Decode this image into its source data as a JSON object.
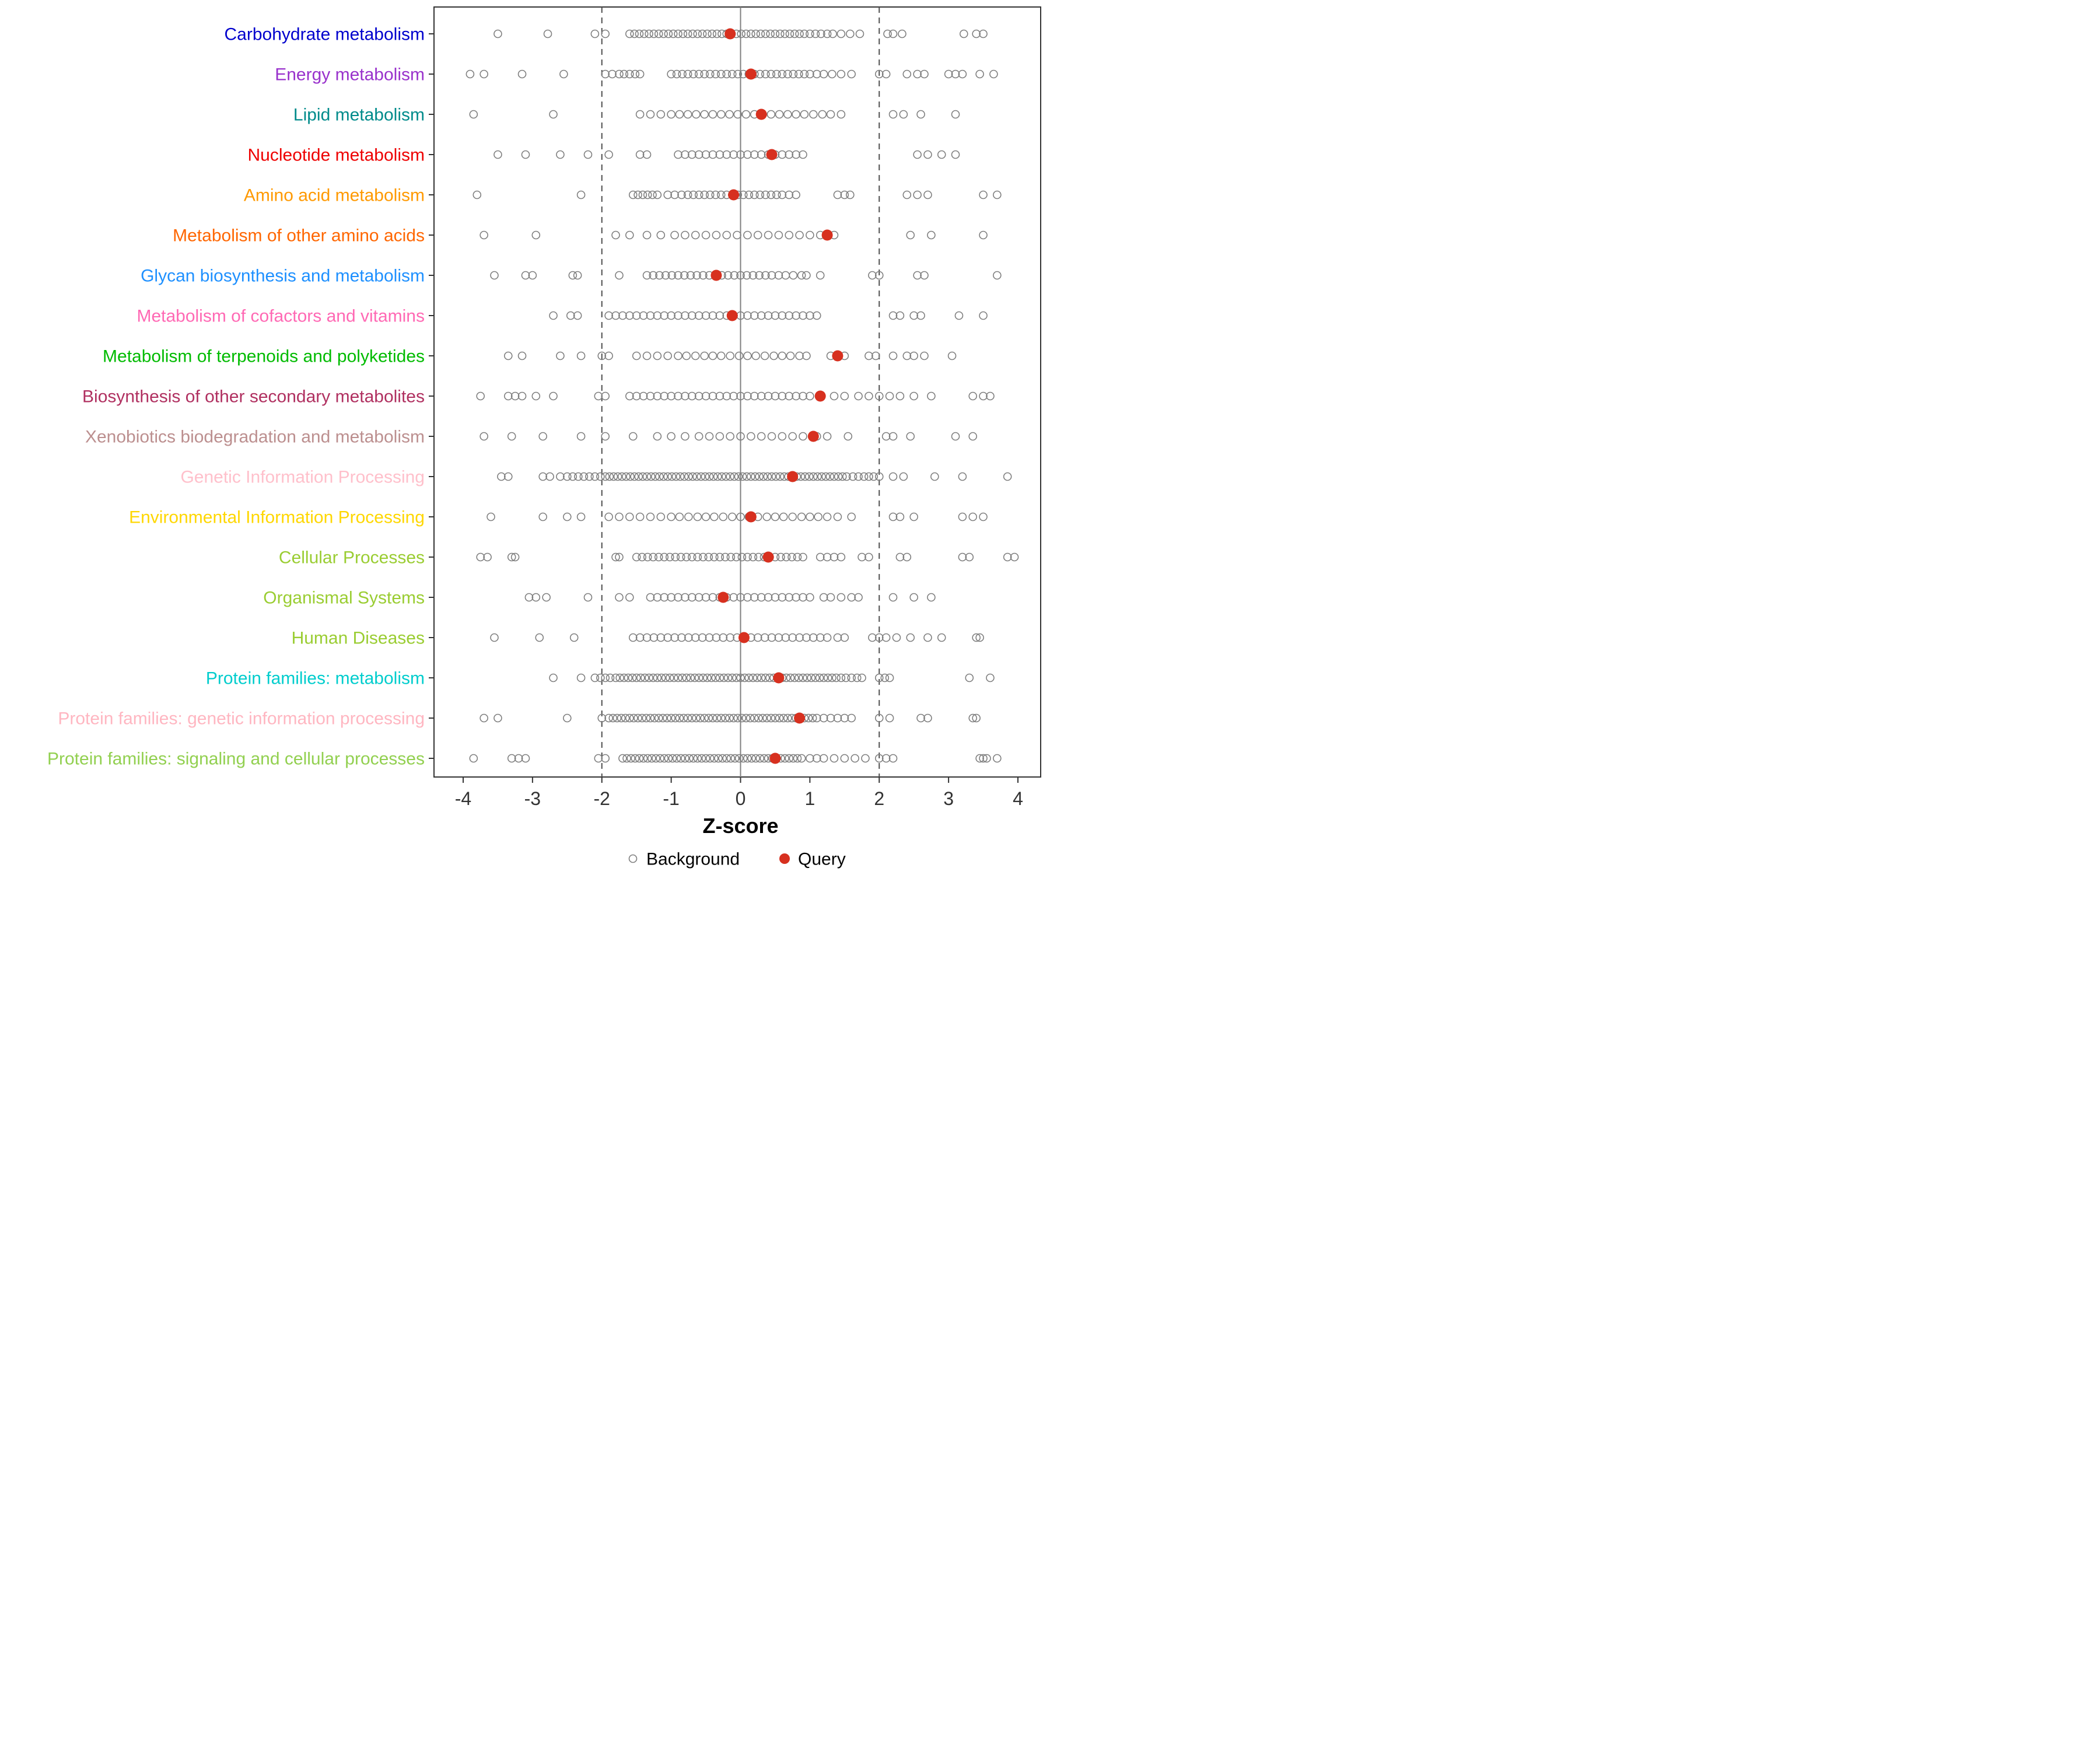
{
  "page": {
    "background": "#FFFFFF"
  },
  "chart_data": {
    "type": "scatter",
    "subtype": "horizontal-strip-dotplot",
    "title": "",
    "xlabel": "Z-score",
    "ylabel": "",
    "xlim": [
      -4.45,
      4.35
    ],
    "x_ticks": [
      "-4",
      "-3",
      "-2",
      "-1",
      "0",
      "1",
      "2",
      "3",
      "4"
    ],
    "x_tick_values": [
      -4,
      -3,
      -2,
      -1,
      0,
      1,
      2,
      3,
      4
    ],
    "grid": false,
    "reference_lines": {
      "solid_x": [
        0
      ],
      "dashed_x": [
        -2,
        2
      ]
    },
    "colors": {
      "query": "#D7301F",
      "background_stroke": "#7F7F7F",
      "dashed_line": "#4D4D4D",
      "zero_line": "#808080",
      "panel_border": "#333333",
      "tick_label": "#333333",
      "axis_title": "#000000",
      "legend_text": "#000000"
    },
    "legend": [
      {
        "label": "Background",
        "marker": "open-circle"
      },
      {
        "label": "Query",
        "marker": "filled-circle"
      }
    ],
    "legend_position": "bottom",
    "categories": [
      {
        "label": "Carbohydrate metabolism",
        "color": "#0000CD",
        "query": -0.15,
        "background": [
          -3.5,
          -2.78,
          -2.1,
          -1.95,
          -1.6,
          -1.53,
          -1.46,
          -1.39,
          -1.32,
          -1.25,
          -1.18,
          -1.11,
          -1.04,
          -0.97,
          -0.9,
          -0.83,
          -0.76,
          -0.69,
          -0.62,
          -0.55,
          -0.48,
          -0.41,
          -0.34,
          -0.27,
          -0.2,
          -0.13,
          -0.06,
          0.01,
          0.08,
          0.15,
          0.22,
          0.29,
          0.36,
          0.43,
          0.5,
          0.57,
          0.64,
          0.71,
          0.78,
          0.85,
          0.92,
          1.0,
          1.08,
          1.16,
          1.25,
          1.33,
          1.45,
          1.58,
          1.72,
          2.12,
          2.2,
          2.33,
          3.22,
          3.4,
          3.5
        ]
      },
      {
        "label": "Energy metabolism",
        "color": "#9932CC",
        "query": 0.15,
        "background": [
          -3.9,
          -3.7,
          -3.15,
          -2.55,
          -1.95,
          -1.85,
          -1.75,
          -1.68,
          -1.6,
          -1.52,
          -1.45,
          -1.0,
          -0.92,
          -0.84,
          -0.76,
          -0.68,
          -0.6,
          -0.52,
          -0.44,
          -0.36,
          -0.28,
          -0.2,
          -0.12,
          -0.04,
          0.04,
          0.12,
          0.2,
          0.28,
          0.36,
          0.44,
          0.52,
          0.6,
          0.68,
          0.76,
          0.84,
          0.92,
          1.0,
          1.1,
          1.2,
          1.32,
          1.45,
          1.6,
          2.0,
          2.1,
          2.4,
          2.55,
          2.65,
          3.0,
          3.1,
          3.2,
          3.45,
          3.65
        ]
      },
      {
        "label": "Lipid metabolism",
        "color": "#008B8B",
        "query": 0.3,
        "background": [
          -3.85,
          -2.7,
          -1.45,
          -1.3,
          -1.15,
          -1.0,
          -0.88,
          -0.76,
          -0.64,
          -0.52,
          -0.4,
          -0.28,
          -0.16,
          -0.04,
          0.08,
          0.2,
          0.32,
          0.44,
          0.56,
          0.68,
          0.8,
          0.92,
          1.05,
          1.18,
          1.3,
          1.45,
          2.2,
          2.35,
          2.6,
          3.1
        ]
      },
      {
        "label": "Nucleotide metabolism",
        "color": "#EE0000",
        "query": 0.45,
        "background": [
          -3.5,
          -3.1,
          -2.6,
          -2.2,
          -1.9,
          -1.45,
          -1.35,
          -0.9,
          -0.8,
          -0.7,
          -0.6,
          -0.5,
          -0.4,
          -0.3,
          -0.2,
          -0.1,
          0.0,
          0.1,
          0.2,
          0.3,
          0.4,
          0.5,
          0.6,
          0.7,
          0.8,
          0.9,
          2.55,
          2.7,
          2.9,
          3.1
        ]
      },
      {
        "label": "Amino acid metabolism",
        "color": "#FF9900",
        "query": -0.1,
        "background": [
          -3.8,
          -2.3,
          -1.55,
          -1.48,
          -1.41,
          -1.34,
          -1.27,
          -1.2,
          -1.05,
          -0.95,
          -0.85,
          -0.76,
          -0.68,
          -0.6,
          -0.52,
          -0.44,
          -0.36,
          -0.28,
          -0.2,
          -0.12,
          -0.04,
          0.04,
          0.12,
          0.2,
          0.28,
          0.36,
          0.44,
          0.52,
          0.6,
          0.7,
          0.8,
          1.4,
          1.5,
          1.58,
          2.4,
          2.55,
          2.7,
          3.5,
          3.7
        ]
      },
      {
        "label": "Metabolism of other amino acids",
        "color": "#FF6600",
        "query": 1.25,
        "background": [
          -3.7,
          -2.95,
          -1.8,
          -1.6,
          -1.35,
          -1.15,
          -0.95,
          -0.8,
          -0.65,
          -0.5,
          -0.35,
          -0.2,
          -0.05,
          0.1,
          0.25,
          0.4,
          0.55,
          0.7,
          0.85,
          1.0,
          1.15,
          1.35,
          2.45,
          2.75,
          3.5
        ]
      },
      {
        "label": "Glycan biosynthesis and metabolism",
        "color": "#1E90FF",
        "query": -0.35,
        "background": [
          -3.55,
          -3.1,
          -3.0,
          -2.42,
          -2.35,
          -1.75,
          -1.35,
          -1.26,
          -1.17,
          -1.08,
          -0.99,
          -0.9,
          -0.81,
          -0.72,
          -0.63,
          -0.54,
          -0.45,
          -0.36,
          -0.27,
          -0.18,
          -0.09,
          0.0,
          0.09,
          0.18,
          0.27,
          0.36,
          0.45,
          0.55,
          0.65,
          0.76,
          0.88,
          0.95,
          1.15,
          1.9,
          2.0,
          2.55,
          2.65,
          3.7
        ]
      },
      {
        "label": "Metabolism of cofactors and vitamins",
        "color": "#FF69B4",
        "query": -0.12,
        "background": [
          -2.7,
          -2.45,
          -2.35,
          -1.9,
          -1.8,
          -1.7,
          -1.6,
          -1.5,
          -1.4,
          -1.3,
          -1.2,
          -1.1,
          -1.0,
          -0.9,
          -0.8,
          -0.7,
          -0.6,
          -0.5,
          -0.4,
          -0.3,
          -0.2,
          -0.1,
          0.0,
          0.1,
          0.2,
          0.3,
          0.4,
          0.5,
          0.6,
          0.7,
          0.8,
          0.9,
          1.0,
          1.1,
          2.2,
          2.3,
          2.5,
          2.6,
          3.15,
          3.5
        ]
      },
      {
        "label": "Metabolism of terpenoids and polyketides",
        "color": "#00BB00",
        "query": 1.4,
        "background": [
          -3.35,
          -3.15,
          -2.6,
          -2.3,
          -2.0,
          -1.9,
          -1.5,
          -1.35,
          -1.2,
          -1.05,
          -0.9,
          -0.78,
          -0.65,
          -0.52,
          -0.4,
          -0.28,
          -0.15,
          -0.02,
          0.1,
          0.22,
          0.35,
          0.48,
          0.6,
          0.72,
          0.85,
          0.95,
          1.3,
          1.5,
          1.85,
          1.95,
          2.2,
          2.4,
          2.5,
          2.65,
          3.05
        ]
      },
      {
        "label": "Biosynthesis of other secondary metabolites",
        "color": "#B03060",
        "query": 1.15,
        "background": [
          -3.75,
          -3.35,
          -3.25,
          -3.15,
          -2.95,
          -2.7,
          -2.05,
          -1.95,
          -1.6,
          -1.5,
          -1.4,
          -1.3,
          -1.2,
          -1.1,
          -1.0,
          -0.9,
          -0.8,
          -0.7,
          -0.6,
          -0.5,
          -0.4,
          -0.3,
          -0.2,
          -0.1,
          0.0,
          0.1,
          0.2,
          0.3,
          0.4,
          0.5,
          0.6,
          0.7,
          0.8,
          0.9,
          1.0,
          1.35,
          1.5,
          1.7,
          1.85,
          2.0,
          2.15,
          2.3,
          2.5,
          2.75,
          3.35,
          3.5,
          3.6
        ]
      },
      {
        "label": "Xenobiotics biodegradation and metabolism",
        "color": "#BC8F8F",
        "query": 1.05,
        "background": [
          -3.7,
          -3.3,
          -2.85,
          -2.3,
          -1.95,
          -1.55,
          -1.2,
          -1.0,
          -0.8,
          -0.6,
          -0.45,
          -0.3,
          -0.15,
          0.0,
          0.15,
          0.3,
          0.45,
          0.6,
          0.75,
          0.9,
          1.1,
          1.25,
          1.55,
          2.1,
          2.2,
          2.45,
          3.1,
          3.35
        ]
      },
      {
        "label": "Genetic Information Processing",
        "color": "#FFC0CB",
        "query": 0.75,
        "background": [
          -3.45,
          -3.35,
          -2.85,
          -2.75,
          -2.6,
          -2.5,
          -2.42,
          -2.34,
          -2.26,
          -2.18,
          -2.1,
          -2.02,
          -1.95,
          -1.89,
          -1.83,
          -1.77,
          -1.71,
          -1.65,
          -1.59,
          -1.53,
          -1.47,
          -1.41,
          -1.35,
          -1.29,
          -1.23,
          -1.17,
          -1.11,
          -1.05,
          -0.99,
          -0.93,
          -0.87,
          -0.81,
          -0.75,
          -0.69,
          -0.63,
          -0.57,
          -0.51,
          -0.45,
          -0.39,
          -0.33,
          -0.27,
          -0.21,
          -0.15,
          -0.09,
          -0.03,
          0.03,
          0.09,
          0.15,
          0.21,
          0.27,
          0.33,
          0.39,
          0.45,
          0.51,
          0.57,
          0.63,
          0.69,
          0.75,
          0.81,
          0.87,
          0.93,
          0.99,
          1.05,
          1.11,
          1.17,
          1.23,
          1.29,
          1.35,
          1.41,
          1.47,
          1.53,
          1.62,
          1.7,
          1.78,
          1.85,
          1.92,
          2.0,
          2.2,
          2.35,
          2.8,
          3.2,
          3.85
        ]
      },
      {
        "label": "Environmental Information Processing",
        "color": "#FFD700",
        "query": 0.15,
        "background": [
          -3.6,
          -2.85,
          -2.5,
          -2.3,
          -1.9,
          -1.75,
          -1.6,
          -1.45,
          -1.3,
          -1.15,
          -1.0,
          -0.88,
          -0.75,
          -0.62,
          -0.5,
          -0.38,
          -0.25,
          -0.12,
          0.0,
          0.12,
          0.25,
          0.38,
          0.5,
          0.62,
          0.75,
          0.88,
          1.0,
          1.12,
          1.25,
          1.4,
          1.6,
          2.2,
          2.3,
          2.5,
          3.2,
          3.35,
          3.5
        ]
      },
      {
        "label": "Cellular Processes",
        "color": "#9ACD32",
        "query": 0.4,
        "background": [
          -3.75,
          -3.65,
          -3.3,
          -3.25,
          -1.8,
          -1.75,
          -1.5,
          -1.42,
          -1.34,
          -1.26,
          -1.18,
          -1.1,
          -1.02,
          -0.94,
          -0.86,
          -0.78,
          -0.7,
          -0.62,
          -0.54,
          -0.46,
          -0.38,
          -0.3,
          -0.22,
          -0.14,
          -0.06,
          0.02,
          0.1,
          0.18,
          0.26,
          0.34,
          0.42,
          0.5,
          0.58,
          0.66,
          0.74,
          0.82,
          0.9,
          1.15,
          1.25,
          1.35,
          1.45,
          1.75,
          1.85,
          2.3,
          2.4,
          3.2,
          3.3,
          3.85,
          3.95
        ]
      },
      {
        "label": "Organismal Systems",
        "color": "#9ACD32",
        "query": -0.25,
        "background": [
          -3.05,
          -2.95,
          -2.8,
          -2.2,
          -1.75,
          -1.6,
          -1.3,
          -1.2,
          -1.1,
          -1.0,
          -0.9,
          -0.8,
          -0.7,
          -0.6,
          -0.5,
          -0.4,
          -0.3,
          -0.2,
          -0.1,
          0.0,
          0.1,
          0.2,
          0.3,
          0.4,
          0.5,
          0.6,
          0.7,
          0.8,
          0.9,
          1.0,
          1.2,
          1.3,
          1.45,
          1.6,
          1.7,
          2.2,
          2.5,
          2.75
        ]
      },
      {
        "label": "Human Diseases",
        "color": "#9ACD32",
        "query": 0.05,
        "background": [
          -3.55,
          -2.9,
          -2.4,
          -1.55,
          -1.45,
          -1.35,
          -1.25,
          -1.15,
          -1.05,
          -0.95,
          -0.85,
          -0.75,
          -0.65,
          -0.55,
          -0.45,
          -0.35,
          -0.25,
          -0.15,
          -0.05,
          0.05,
          0.15,
          0.25,
          0.35,
          0.45,
          0.55,
          0.65,
          0.75,
          0.85,
          0.95,
          1.05,
          1.15,
          1.25,
          1.4,
          1.5,
          1.9,
          2.0,
          2.1,
          2.25,
          2.45,
          2.7,
          2.9,
          3.4,
          3.45
        ]
      },
      {
        "label": "Protein families: metabolism",
        "color": "#00CDCD",
        "query": 0.55,
        "background": [
          -2.7,
          -2.3,
          -2.1,
          -2.02,
          -1.95,
          -1.88,
          -1.8,
          -1.74,
          -1.68,
          -1.62,
          -1.56,
          -1.5,
          -1.44,
          -1.38,
          -1.32,
          -1.26,
          -1.2,
          -1.14,
          -1.08,
          -1.02,
          -0.96,
          -0.9,
          -0.84,
          -0.78,
          -0.72,
          -0.66,
          -0.6,
          -0.54,
          -0.48,
          -0.42,
          -0.36,
          -0.3,
          -0.24,
          -0.18,
          -0.12,
          -0.06,
          0.0,
          0.06,
          0.12,
          0.18,
          0.24,
          0.3,
          0.36,
          0.42,
          0.48,
          0.54,
          0.6,
          0.66,
          0.72,
          0.78,
          0.84,
          0.9,
          0.96,
          1.02,
          1.08,
          1.14,
          1.2,
          1.26,
          1.32,
          1.38,
          1.45,
          1.52,
          1.6,
          1.68,
          1.75,
          2.0,
          2.08,
          2.15,
          3.3,
          3.6
        ]
      },
      {
        "label": "Protein families: genetic information processing",
        "color": "#FFB6C1",
        "query": 0.85,
        "background": [
          -3.7,
          -3.5,
          -2.5,
          -2.0,
          -1.9,
          -1.84,
          -1.78,
          -1.72,
          -1.66,
          -1.6,
          -1.54,
          -1.48,
          -1.42,
          -1.36,
          -1.3,
          -1.24,
          -1.18,
          -1.12,
          -1.06,
          -1.0,
          -0.94,
          -0.88,
          -0.82,
          -0.76,
          -0.7,
          -0.64,
          -0.58,
          -0.52,
          -0.46,
          -0.4,
          -0.34,
          -0.28,
          -0.22,
          -0.16,
          -0.1,
          -0.04,
          0.02,
          0.08,
          0.14,
          0.2,
          0.26,
          0.32,
          0.38,
          0.44,
          0.5,
          0.56,
          0.62,
          0.68,
          0.74,
          0.8,
          0.86,
          0.92,
          0.98,
          1.04,
          1.1,
          1.2,
          1.3,
          1.4,
          1.5,
          1.6,
          2.0,
          2.15,
          2.6,
          2.7,
          3.35,
          3.4
        ]
      },
      {
        "label": "Protein families: signaling and cellular processes",
        "color": "#92D050",
        "query": 0.5,
        "background": [
          -3.85,
          -3.3,
          -3.2,
          -3.1,
          -2.05,
          -1.95,
          -1.7,
          -1.64,
          -1.58,
          -1.52,
          -1.46,
          -1.4,
          -1.34,
          -1.28,
          -1.22,
          -1.16,
          -1.1,
          -1.04,
          -0.98,
          -0.92,
          -0.86,
          -0.8,
          -0.74,
          -0.68,
          -0.62,
          -0.56,
          -0.5,
          -0.44,
          -0.38,
          -0.32,
          -0.26,
          -0.2,
          -0.14,
          -0.08,
          -0.02,
          0.04,
          0.1,
          0.16,
          0.22,
          0.28,
          0.34,
          0.4,
          0.46,
          0.52,
          0.58,
          0.64,
          0.7,
          0.76,
          0.82,
          0.88,
          1.0,
          1.1,
          1.2,
          1.35,
          1.5,
          1.65,
          1.8,
          2.0,
          2.1,
          2.2,
          3.45,
          3.5,
          3.55,
          3.7
        ]
      }
    ]
  }
}
